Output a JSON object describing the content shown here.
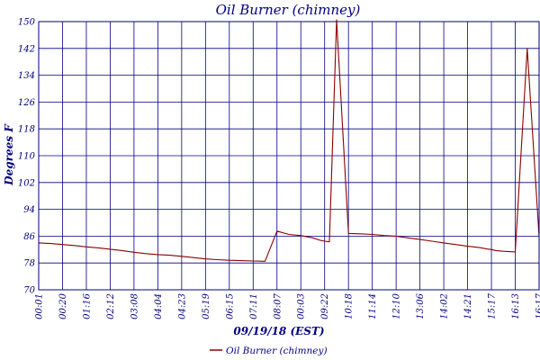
{
  "chart_data": {
    "type": "line",
    "title": "Oil Burner (chimney)",
    "xlabel": "09/19/18 (EST)",
    "ylabel": "Degrees F",
    "ylim": [
      70,
      150
    ],
    "y_ticks": [
      "70",
      "78",
      "86",
      "94",
      "102",
      "110",
      "118",
      "126",
      "134",
      "142",
      "150"
    ],
    "x_ticks": [
      "00:01",
      "00:20",
      "01:16",
      "02:12",
      "03:08",
      "04:04",
      "04:23",
      "05:19",
      "06:15",
      "07:11",
      "08:07",
      "00:03",
      "09:22",
      "10:18",
      "11:14",
      "12:10",
      "13:06",
      "14:02",
      "14:21",
      "15:17",
      "16:13",
      "16:17"
    ],
    "grid": true,
    "legend_position": "bottom",
    "series": [
      {
        "name": "Oil Burner (chimney)",
        "color": "#8b0000",
        "x": [
          0,
          0.5,
          1,
          1.5,
          2,
          2.5,
          3,
          3.5,
          4,
          4.5,
          5,
          5.5,
          6,
          6.5,
          7,
          7.5,
          8,
          8.5,
          9,
          9.5,
          10,
          10.5,
          11,
          11.5,
          11.8,
          12,
          12.2,
          12.5,
          13,
          13.5,
          14,
          14.5,
          15,
          15.5,
          16,
          16.5,
          17,
          17.5,
          18,
          18.5,
          18.8,
          19,
          19.2,
          19.5,
          20,
          20.5,
          21
        ],
        "y": [
          84.0,
          83.8,
          83.5,
          83.2,
          82.8,
          82.5,
          82.1,
          81.7,
          81.2,
          80.8,
          80.5,
          80.3,
          80.0,
          79.6,
          79.2,
          79.0,
          78.8,
          78.7,
          78.6,
          78.5,
          87.5,
          86.5,
          86.2,
          85.5,
          84.8,
          84.5,
          84.3,
          150.5,
          86.8,
          86.7,
          86.5,
          86.2,
          86.0,
          85.5,
          85.0,
          84.5,
          84.0,
          83.5,
          83.0,
          82.6,
          82.2,
          82.0,
          81.7,
          81.5,
          81.3,
          142.0,
          85.8
        ]
      }
    ]
  }
}
